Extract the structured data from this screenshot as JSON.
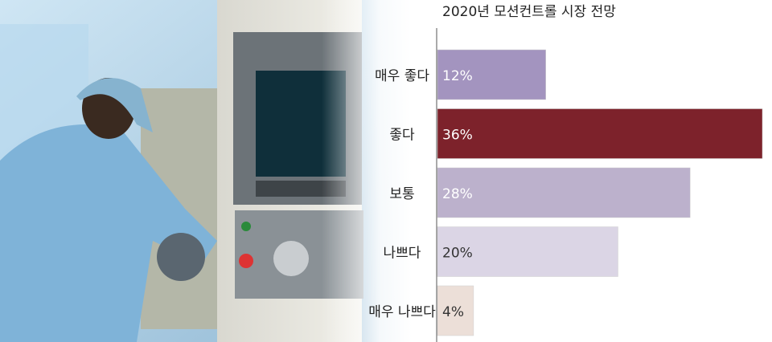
{
  "chart_data": {
    "type": "bar",
    "orientation": "horizontal",
    "title": "2020년 모션컨트롤 시장 전망",
    "categories": [
      "매우 좋다",
      "좋다",
      "보통",
      "나쁘다",
      "매우 나쁘다"
    ],
    "values": [
      12,
      36,
      28,
      20,
      4
    ],
    "data_labels": [
      "12%",
      "36%",
      "28%",
      "20%",
      "4%"
    ],
    "unit": "%",
    "xlim": [
      0,
      36
    ],
    "grid": false,
    "colors": [
      "#a394bf",
      "#7d222b",
      "#bcb1cc",
      "#dbd5e5",
      "#ecdfd8"
    ],
    "label_colors": [
      "#ffffff",
      "#ffffff",
      "#ffffff",
      "#333333",
      "#333333"
    ]
  },
  "background": {
    "subject": "factory worker operating CNC machine control panel"
  }
}
